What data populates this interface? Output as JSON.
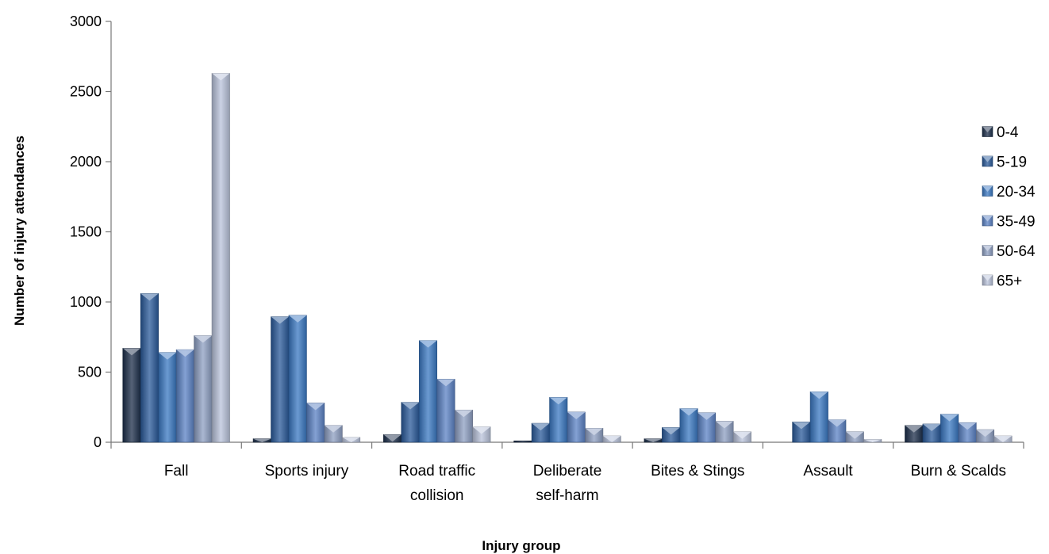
{
  "chart_data": {
    "type": "bar",
    "title": "",
    "xlabel": "Injury group",
    "ylabel": "Number of injury attendances",
    "ylim": [
      0,
      3000
    ],
    "yticks": [
      0,
      500,
      1000,
      1500,
      2000,
      2500,
      3000
    ],
    "categories": [
      [
        "Fall"
      ],
      [
        "Sports injury"
      ],
      [
        "Road traffic",
        "collision"
      ],
      [
        "Deliberate",
        "self-harm"
      ],
      [
        "Bites & Stings"
      ],
      [
        "Assault"
      ],
      [
        "Burn & Scalds"
      ]
    ],
    "legend_position": "right",
    "grid": false,
    "series": [
      {
        "name": "0-4",
        "color": "#1c2e4a",
        "values": [
          670,
          25,
          55,
          10,
          25,
          0,
          120
        ]
      },
      {
        "name": "5-19",
        "color": "#2a5a9a",
        "values": [
          1060,
          895,
          285,
          135,
          105,
          145,
          130
        ]
      },
      {
        "name": "20-34",
        "color": "#3a78c2",
        "values": [
          640,
          905,
          725,
          320,
          240,
          360,
          200
        ]
      },
      {
        "name": "35-49",
        "color": "#5b82c4",
        "values": [
          660,
          280,
          450,
          215,
          210,
          160,
          140
        ]
      },
      {
        "name": "50-64",
        "color": "#8d9fc2",
        "values": [
          760,
          120,
          230,
          100,
          150,
          75,
          90
        ]
      },
      {
        "name": "65+",
        "color": "#b9c3db",
        "values": [
          2630,
          35,
          110,
          45,
          75,
          20,
          45
        ]
      }
    ]
  }
}
